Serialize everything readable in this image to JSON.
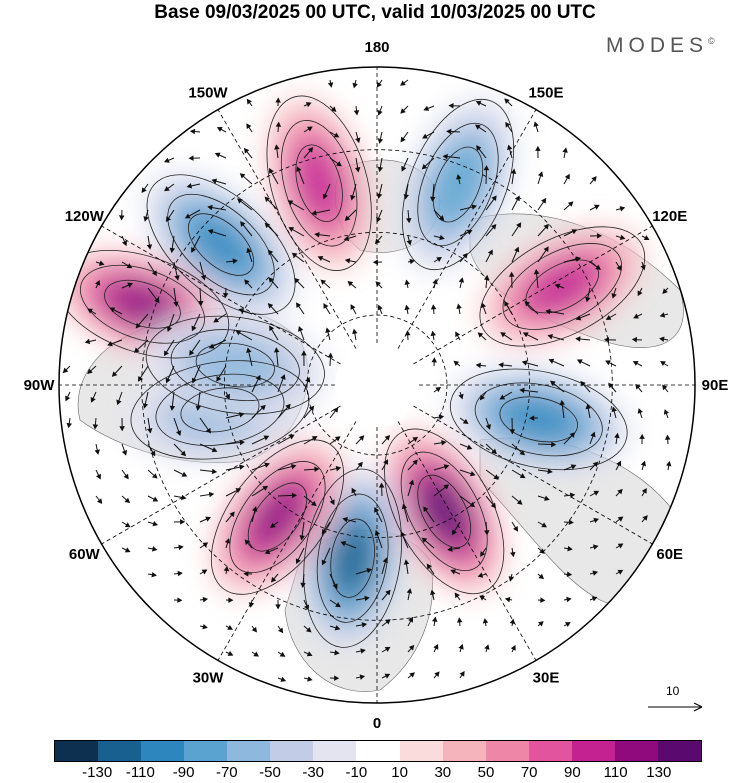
{
  "header": {
    "title": "Base 09/03/2025 00 UTC, valid 10/03/2025 00 UTC",
    "brand": "MODES",
    "brand_mark": "©"
  },
  "map": {
    "projection": "north-polar-stereographic",
    "background_color": "#ffffff",
    "land_fill": "#e8e8e8",
    "longitude_labels": [
      "180",
      "150E",
      "120E",
      "90E",
      "60E",
      "30E",
      "0",
      "30W",
      "60W",
      "90W",
      "120W",
      "150W"
    ],
    "anomaly_centers": [
      {
        "sign": "positive",
        "value": 90,
        "sector": "180-150W"
      },
      {
        "sign": "negative",
        "value": -90,
        "sector": "150W-120W"
      },
      {
        "sign": "positive",
        "value": 110,
        "sector": "120W"
      },
      {
        "sign": "negative",
        "value": -70,
        "sector": "150E-180"
      },
      {
        "sign": "positive",
        "value": 90,
        "sector": "120E"
      },
      {
        "sign": "negative",
        "value": -90,
        "sector": "90E"
      },
      {
        "sign": "positive",
        "value": 130,
        "sector": "30E-60E"
      },
      {
        "sign": "negative",
        "value": -110,
        "sector": "0-30W"
      },
      {
        "sign": "positive",
        "value": 110,
        "sector": "30W-60W"
      },
      {
        "sign": "negative",
        "value": -50,
        "sector": "90W"
      },
      {
        "sign": "negative",
        "value": -50,
        "sector": "120W-90W"
      }
    ]
  },
  "vector_reference": {
    "label": "10"
  },
  "colorbar": {
    "colors": [
      "#0d3050",
      "#17608f",
      "#2e86bf",
      "#5aa3d0",
      "#8fb8de",
      "#c3cce6",
      "#e4e4f1",
      "#ffffff",
      "#fbdcdc",
      "#f5b3bc",
      "#ee86a8",
      "#e3549f",
      "#c42290",
      "#900a7d",
      "#5a0a6e"
    ],
    "tick_labels": [
      "-130",
      "-110",
      "-90",
      "-70",
      "-50",
      "-30",
      "-10",
      "10",
      "30",
      "50",
      "70",
      "90",
      "110",
      "130"
    ]
  }
}
